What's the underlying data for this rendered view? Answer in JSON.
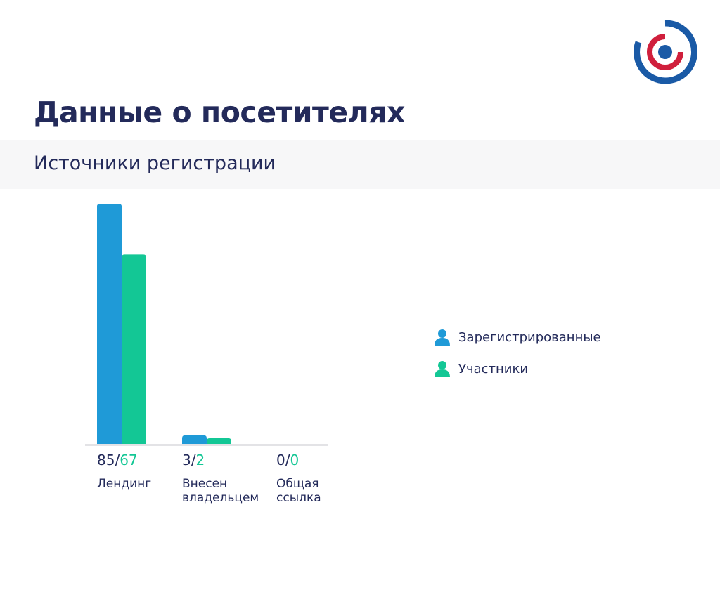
{
  "header": {
    "title": "Данные о посетителях",
    "section_title": "Источники регистрации"
  },
  "colors": {
    "registered": "#1f9ad7",
    "participants": "#13c795",
    "text": "#232a5a",
    "logo_outer": "#1a5aa6",
    "logo_inner": "#d01f3c"
  },
  "legend": {
    "items": [
      {
        "label": "Зарегистрированные",
        "icon": "person-icon"
      },
      {
        "label": "Участники",
        "icon": "person-icon"
      }
    ]
  },
  "chart_data": {
    "type": "bar",
    "categories": [
      [
        "Лендинг"
      ],
      [
        "Внесен",
        "владельцем"
      ],
      [
        "Общая",
        "ссылка"
      ]
    ],
    "series": [
      {
        "name": "Зарегистрированные",
        "values": [
          85,
          3,
          0
        ]
      },
      {
        "name": "Участники",
        "values": [
          67,
          2,
          0
        ]
      }
    ],
    "value_separator": "/",
    "ylim": [
      0,
      85
    ],
    "legend_position": "right",
    "grid": false
  }
}
